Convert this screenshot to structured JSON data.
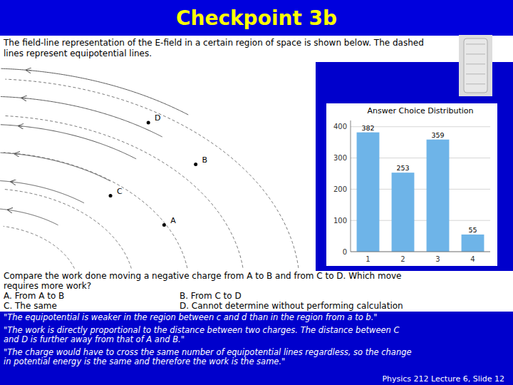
{
  "slide_title": "Checkpoint 3b",
  "description": "The field-line representation of the E-field in a certain region of space is shown below.  The dashed\nlines represent equipotential lines.",
  "diagram_labels": [
    "D",
    "B",
    "C",
    "A"
  ],
  "question": [
    "Compare the work done moving a negative charge from A to B and from C to D.  Which move",
    "requires more work?"
  ],
  "choices": [
    "A.  From A to B",
    "B.  From C to D",
    "C.  The same",
    "D.  Cannot determine without performing calculation"
  ],
  "comments": [
    "\"The equipotential is weaker in the region between c and d than in the region from a to b.\"",
    "\"The work is directly proportional to the distance between two charges. The distance between C\nand D is further away from that of A and B.\"",
    "\"The charge would have to cross the same number of equipotential lines regardless, so the change\nin potential energy is the same and therefore the work is the same.\""
  ],
  "footer": "Physics 212  Lecture 6, Slide  12",
  "chart_data": {
    "type": "bar",
    "title": "Answer Choice Distribution",
    "categories": [
      "1",
      "2",
      "3",
      "4"
    ],
    "values": [
      382,
      253,
      359,
      55
    ],
    "color": "#6EB4E8",
    "ylim": [
      0,
      420
    ],
    "yticks": [
      0,
      100,
      200,
      300,
      400
    ],
    "grid": true,
    "data_labels": true
  }
}
